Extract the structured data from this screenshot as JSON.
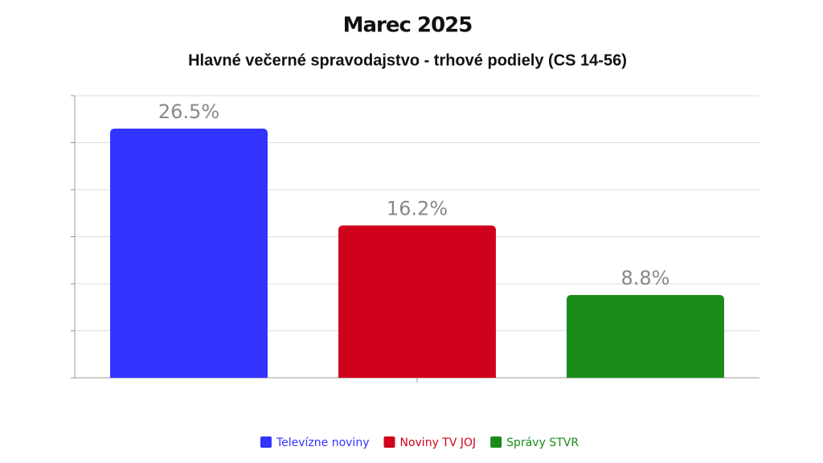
{
  "chart_data": {
    "type": "bar",
    "title": "Marec 2025",
    "subtitle": "Hlavné večerné spravodajstvo - trhové podiely (CS 14-56)",
    "categories": [
      null
    ],
    "series": [
      {
        "name": "Televízne noviny",
        "color": "#3333ff",
        "values": [
          26.5
        ],
        "value_labels": [
          "26.5%"
        ]
      },
      {
        "name": "Noviny TV JOJ",
        "color": "#d0021b",
        "values": [
          16.2
        ],
        "value_labels": [
          "16.2%"
        ]
      },
      {
        "name": "Správy STVR",
        "color": "#1a8c1a",
        "values": [
          8.8
        ],
        "value_labels": [
          "8.8%"
        ]
      }
    ],
    "ylim": [
      0,
      30
    ],
    "yticks": [
      0,
      5,
      10,
      15,
      20,
      25,
      30
    ],
    "grid": true,
    "legend": "bottom"
  }
}
